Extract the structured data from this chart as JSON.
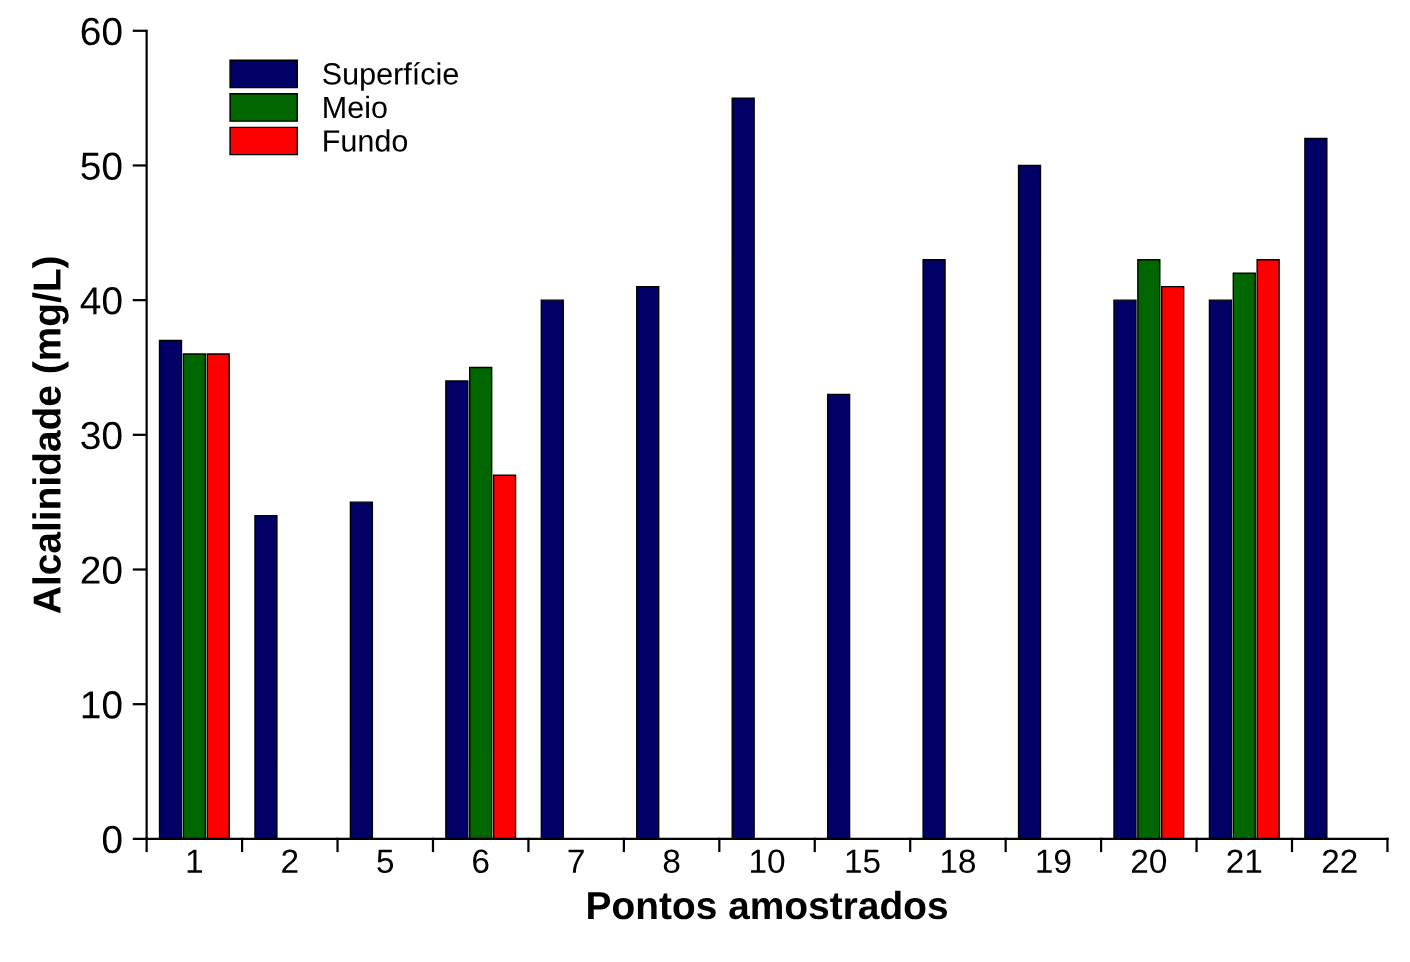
{
  "chart_data": {
    "type": "bar",
    "xlabel": "Pontos amostrados",
    "ylabel": "Alcalinidade (mg/L)",
    "categories": [
      "1",
      "2",
      "5",
      "6",
      "7",
      "8",
      "10",
      "15",
      "18",
      "19",
      "20",
      "21",
      "22"
    ],
    "series": [
      {
        "name": "Superfície",
        "color": "#000066",
        "values": [
          37,
          24,
          25,
          34,
          40,
          41,
          55,
          33,
          43,
          50,
          40,
          40,
          52
        ]
      },
      {
        "name": "Meio",
        "color": "#006600",
        "values": [
          36,
          null,
          null,
          35,
          null,
          null,
          null,
          null,
          null,
          null,
          43,
          42,
          null
        ]
      },
      {
        "name": "Fundo",
        "color": "#ff0000",
        "values": [
          36,
          null,
          null,
          27,
          null,
          null,
          null,
          null,
          null,
          null,
          41,
          43,
          null
        ]
      }
    ],
    "ylim": [
      0,
      60
    ],
    "yticks": [
      0,
      10,
      20,
      30,
      40,
      50,
      60
    ],
    "legend": "top left",
    "grid": false
  }
}
